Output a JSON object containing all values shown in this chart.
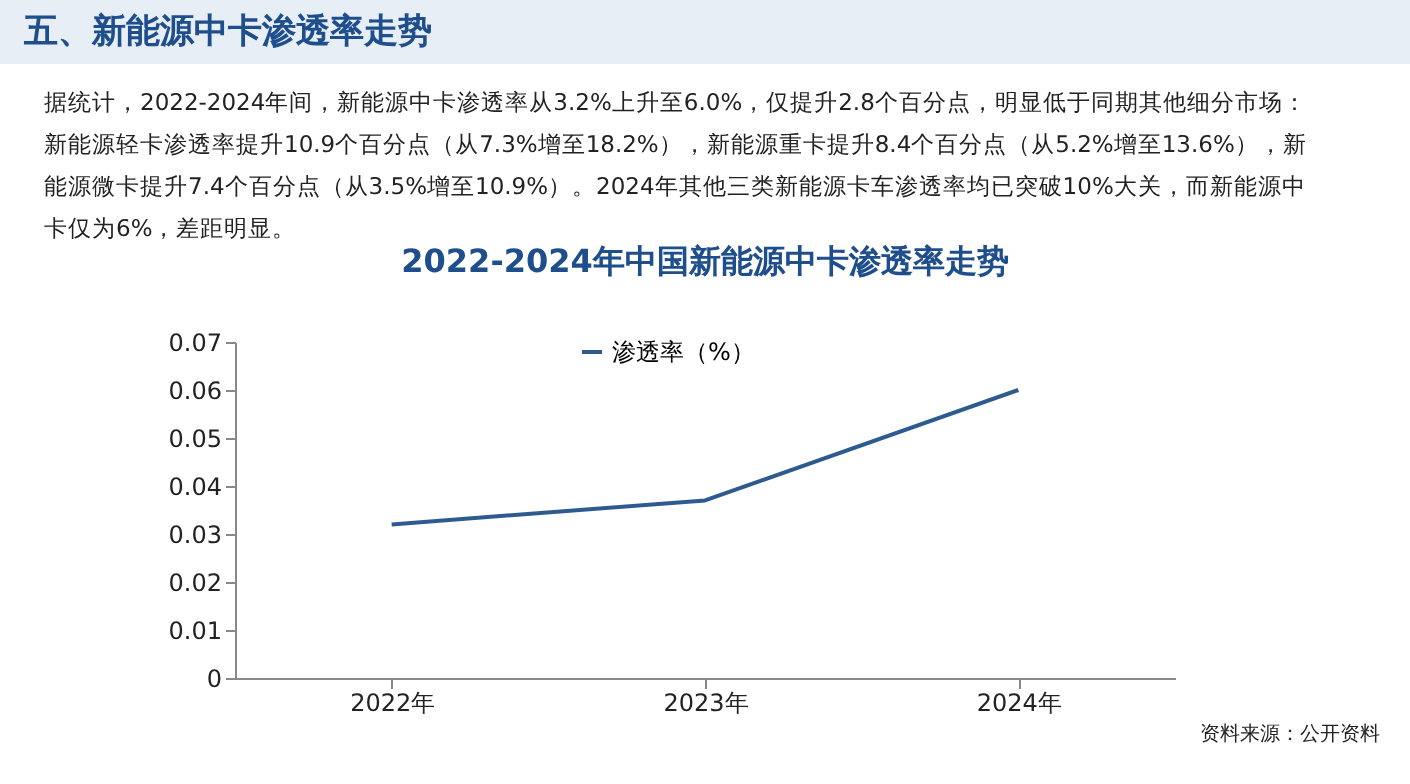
{
  "chart_data": {
    "type": "line",
    "title": "2022-2024年中国新能源中卡渗透率走势",
    "annotations": [
      "五、新能源中卡渗透率走势",
      "据统计，2022-2024年间，新能源中卡渗透率从3.2%上升至6.0%，仅提升2.8个百分点，明显低于同期其他细分市场：",
      "新能源轻卡渗透率提升10.9个百分点（从7.3%增至18.2%），新能源重卡提升8.4个百分点（从5.2%增至13.6%），新",
      "能源微卡提升7.4个百分点（从3.5%增至10.9%）。2024年其他三类新能源卡车渗透率均已突破10%大关，而新能源中",
      "卡仅为6%，差距明显。",
      "资料来源：公开资料"
    ],
    "categories": [
      "2022年",
      "2023年",
      "2024年"
    ],
    "series": [
      {
        "name": "渗透率（%）",
        "color": "#2e5b8f",
        "values": [
          0.032,
          0.037,
          0.06
        ]
      }
    ],
    "ylim": [
      0,
      0.07
    ],
    "yticks": [
      0,
      0.01,
      0.02,
      0.03,
      0.04,
      0.05,
      0.06,
      0.07
    ],
    "grid": false,
    "legend": "top",
    "marker": "none",
    "line_style": "solid"
  }
}
